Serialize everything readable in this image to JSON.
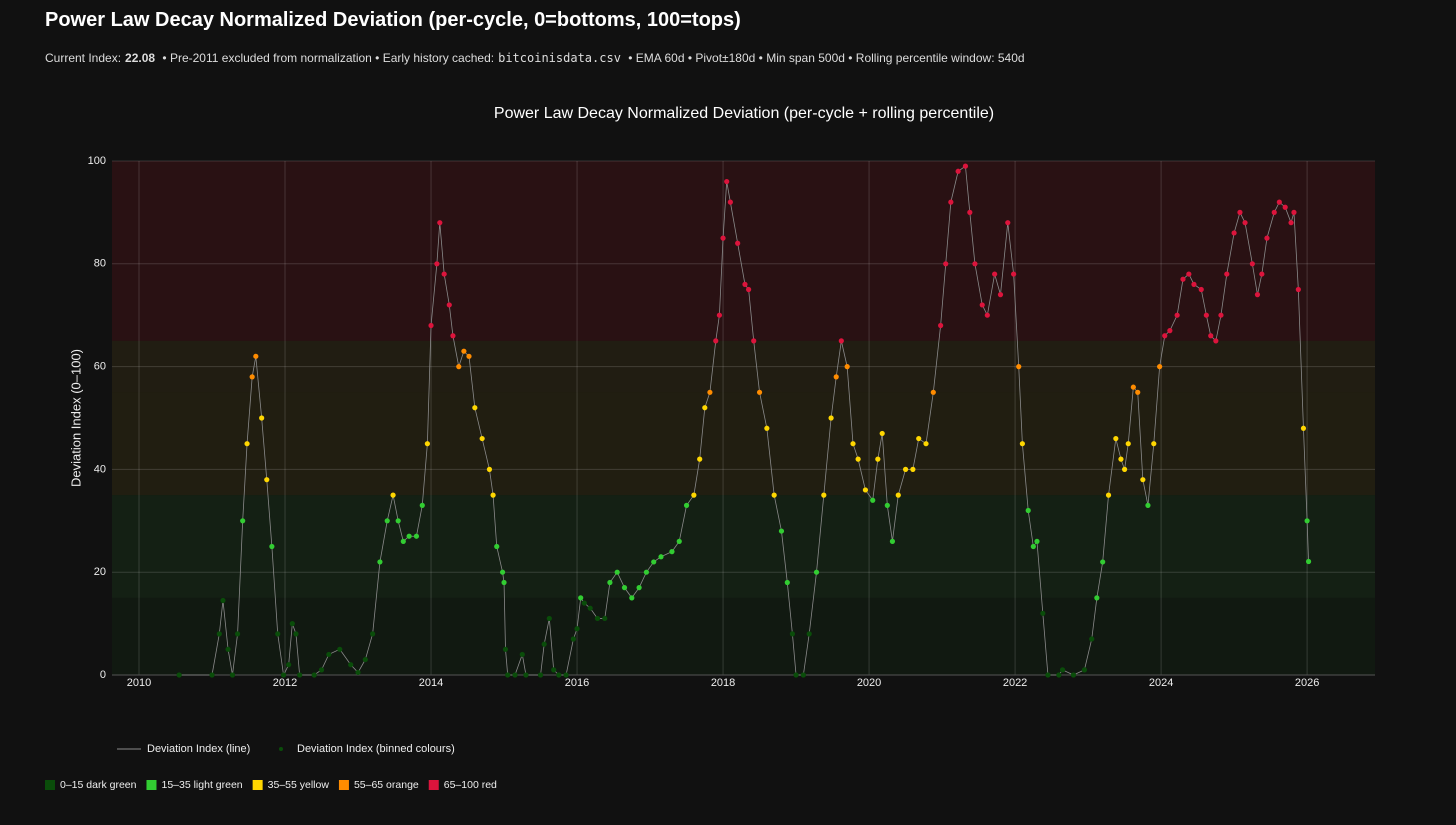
{
  "header": {
    "title": "Power Law Decay Normalized Deviation (per-cycle, 0=bottoms, 100=tops)",
    "current_index_label": "Current Index:",
    "current_index": 22.08,
    "pre_note": "• Pre-2011 excluded from normalization • Early history cached:",
    "cache_file": "bitcoinisdata.csv",
    "post_note": "• EMA 60d • Pivot±180d • Min span 500d • Rolling percentile window: 540d"
  },
  "chart_data": {
    "type": "scatter",
    "title": "Power Law Decay Normalized Deviation (per-cycle + rolling percentile)",
    "y_label": "Deviation Index (0–100)",
    "legend": [
      "Deviation Index (line)",
      "Deviation Index (binned colours)"
    ],
    "line_color": "#8a8a8a",
    "bands": [
      {
        "label": "0–15 dark green",
        "from": 0,
        "to": 15,
        "color": "#0a4d0a",
        "shade": "rgba(20,70,20,0.16)"
      },
      {
        "label": "15–35 light green",
        "from": 15,
        "to": 35,
        "color": "#32cd32",
        "shade": "rgba(40,110,40,0.16)"
      },
      {
        "label": "35–55 yellow",
        "from": 35,
        "to": 55,
        "color": "#ffd700",
        "shade": "rgba(120,100,20,0.16)"
      },
      {
        "label": "55–65 orange",
        "from": 55,
        "to": 65,
        "color": "#ff8c00",
        "shade": "rgba(120,95,25,0.16)"
      },
      {
        "label": "65–100 red",
        "from": 65,
        "to": 100,
        "color": "#dc143c",
        "shade": "rgba(140,20,30,0.2)"
      }
    ],
    "xlim": [
      2009.63,
      2026.93
    ],
    "xticks": [
      2010,
      2012,
      2014,
      2016,
      2018,
      2020,
      2022,
      2024,
      2026
    ],
    "ylim": [
      0,
      100
    ],
    "yticks": [
      0,
      20,
      40,
      60,
      80,
      100
    ],
    "grid": true,
    "x": [
      2010.55,
      2011.0,
      2011.1,
      2011.15,
      2011.22,
      2011.28,
      2011.35,
      2011.42,
      2011.48,
      2011.55,
      2011.6,
      2011.68,
      2011.75,
      2011.82,
      2011.9,
      2011.98,
      2012.05,
      2012.1,
      2012.15,
      2012.2,
      2012.4,
      2012.5,
      2012.6,
      2012.75,
      2012.9,
      2013.0,
      2013.1,
      2013.2,
      2013.3,
      2013.4,
      2013.48,
      2013.55,
      2013.62,
      2013.7,
      2013.8,
      2013.88,
      2013.95,
      2014.0,
      2014.08,
      2014.12,
      2014.18,
      2014.25,
      2014.3,
      2014.38,
      2014.45,
      2014.52,
      2014.6,
      2014.7,
      2014.8,
      2014.85,
      2014.9,
      2014.98,
      2015.0,
      2015.02,
      2015.05,
      2015.15,
      2015.25,
      2015.3,
      2015.5,
      2015.55,
      2015.62,
      2015.68,
      2015.75,
      2015.85,
      2015.95,
      2016.0,
      2016.05,
      2016.1,
      2016.18,
      2016.28,
      2016.38,
      2016.45,
      2016.55,
      2016.65,
      2016.75,
      2016.85,
      2016.95,
      2017.05,
      2017.15,
      2017.3,
      2017.4,
      2017.5,
      2017.6,
      2017.68,
      2017.75,
      2017.82,
      2017.9,
      2017.95,
      2018.0,
      2018.05,
      2018.1,
      2018.2,
      2018.3,
      2018.35,
      2018.42,
      2018.5,
      2018.6,
      2018.7,
      2018.8,
      2018.88,
      2018.95,
      2019.0,
      2019.1,
      2019.18,
      2019.28,
      2019.38,
      2019.48,
      2019.55,
      2019.62,
      2019.7,
      2019.78,
      2019.85,
      2019.95,
      2020.05,
      2020.12,
      2020.18,
      2020.25,
      2020.32,
      2020.4,
      2020.5,
      2020.6,
      2020.68,
      2020.78,
      2020.88,
      2020.98,
      2021.05,
      2021.12,
      2021.22,
      2021.32,
      2021.38,
      2021.45,
      2021.55,
      2021.62,
      2021.72,
      2021.8,
      2021.9,
      2021.98,
      2022.05,
      2022.1,
      2022.18,
      2022.25,
      2022.3,
      2022.38,
      2022.45,
      2022.6,
      2022.65,
      2022.8,
      2022.95,
      2023.05,
      2023.12,
      2023.2,
      2023.28,
      2023.38,
      2023.45,
      2023.5,
      2023.55,
      2023.62,
      2023.68,
      2023.75,
      2023.82,
      2023.9,
      2023.98,
      2024.05,
      2024.12,
      2024.22,
      2024.3,
      2024.38,
      2024.45,
      2024.55,
      2024.62,
      2024.68,
      2024.75,
      2024.82,
      2024.9,
      2025.0,
      2025.08,
      2025.15,
      2025.25,
      2025.32,
      2025.38,
      2025.45,
      2025.55,
      2025.62,
      2025.7,
      2025.78,
      2025.82,
      2025.88,
      2025.95,
      2026.0,
      2026.02
    ],
    "values": [
      0,
      0,
      8,
      14.5,
      5,
      0,
      8,
      30,
      45,
      58,
      62,
      50,
      38,
      25,
      8,
      0,
      2,
      10,
      8,
      0,
      0,
      1,
      4,
      5,
      2,
      0.5,
      3,
      8,
      22,
      30,
      35,
      30,
      26,
      27,
      27,
      33,
      45,
      68,
      80,
      88,
      78,
      72,
      66,
      60,
      63,
      62,
      52,
      46,
      40,
      35,
      25,
      20,
      18,
      5,
      0,
      0,
      4,
      0,
      0,
      6,
      11,
      1,
      0,
      0,
      7,
      9,
      15,
      14,
      13,
      11,
      11,
      18,
      20,
      17,
      15,
      17,
      20,
      22,
      23,
      24,
      26,
      33,
      35,
      42,
      52,
      55,
      65,
      70,
      85,
      96,
      92,
      84,
      76,
      75,
      65,
      55,
      48,
      35,
      28,
      18,
      8,
      0,
      0,
      8,
      20,
      35,
      50,
      58,
      65,
      60,
      45,
      42,
      36,
      34,
      42,
      47,
      33,
      26,
      35,
      40,
      40,
      46,
      45,
      55,
      68,
      80,
      92,
      98,
      99,
      90,
      80,
      72,
      70,
      78,
      74,
      88,
      78,
      60,
      45,
      32,
      25,
      26,
      12,
      0,
      0,
      1,
      0,
      1,
      7,
      15,
      22,
      35,
      46,
      42,
      40,
      45,
      56,
      55,
      38,
      33,
      45,
      60,
      66,
      67,
      70,
      77,
      78,
      76,
      75,
      70,
      66,
      65,
      70,
      78,
      86,
      90,
      88,
      80,
      74,
      78,
      85,
      90,
      92,
      91,
      88,
      90,
      75,
      48,
      30,
      22.08
    ]
  }
}
